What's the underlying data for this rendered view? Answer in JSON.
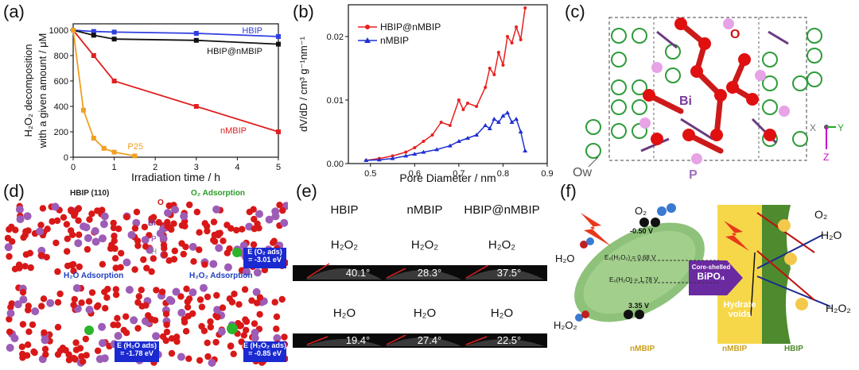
{
  "panels": {
    "a": {
      "label": "(a)"
    },
    "b": {
      "label": "(b)"
    },
    "c": {
      "label": "(c)",
      "atom_o": "O",
      "atom_bi": "Bi",
      "atom_p": "P",
      "atom_ow": "Ow",
      "axis_x": "X",
      "axis_y": "Y",
      "axis_z": "Z"
    },
    "d": {
      "label": "(d)",
      "sub1": "HBIP (110)",
      "sub2": "O₂ Adsorption",
      "sub3": "H₂O Adsorption",
      "sub4": "H₂O₂ Adsorption",
      "lab_o": "O",
      "lab_bi": "Bi",
      "lab_p": "P",
      "lab_h": "H",
      "e1_name": "E (O₂ ads)",
      "e1_val": "= -3.01 eV",
      "e2_name": "E (H₂O ads)",
      "e2_val": "= -1.78 eV",
      "e3_name": "E (H₂O₂ ads)",
      "e3_val": "= -0.85 eV"
    },
    "e": {
      "label": "(e)",
      "col1": "HBIP",
      "col2": "nMBIP",
      "col3": "HBIP@nMBIP",
      "row1": "H₂O₂",
      "row2": "H₂O",
      "angles_h2o2": [
        "40.1°",
        "28.3°",
        "37.5°"
      ],
      "angles_h2o": [
        "19.4°",
        "27.4°",
        "22.5°"
      ]
    },
    "f": {
      "label": "(f)",
      "o2": "O₂",
      "h2o_left": "H₂O",
      "h2o2_left": "H₂O₂",
      "v1": "-0.50 V",
      "v2": "E₀(H₂O₂) = 0.68 V",
      "v3": "E₀(H₂O) = 1.78 V",
      "v4": "3.35 V",
      "core": "Core-shelled",
      "bipo": "BiPO₄",
      "hydrate1": "Hydrate",
      "hydrate2": "voids",
      "o2_right": "O₂",
      "h2o_right": "H₂O",
      "h2o2_right": "H₂O₂",
      "bottom1": "nMBIP",
      "bottom2": "nMBIP",
      "bottom3": "HBIP"
    }
  },
  "chart_data": [
    {
      "type": "line",
      "ylabel_line1": "H₂O₂ decomposition",
      "ylabel_line2": "with a given amount / μM",
      "xlabel": "Irradiation time / h",
      "xlim": [
        0,
        5
      ],
      "ylim": [
        0,
        1050
      ],
      "x_ticks": [
        "0",
        "1",
        "2",
        "3",
        "4",
        "5"
      ],
      "y_ticks": [
        "0",
        "200",
        "400",
        "600",
        "800",
        "1000"
      ],
      "series": [
        {
          "name": "HBIP",
          "color": "#2f3fe0",
          "x": [
            0,
            0.5,
            1,
            3,
            5
          ],
          "y": [
            1000,
            990,
            985,
            975,
            950
          ]
        },
        {
          "name": "HBIP@nMBIP",
          "color": "#111111",
          "x": [
            0,
            0.5,
            1,
            3,
            5
          ],
          "y": [
            1000,
            960,
            930,
            920,
            890
          ]
        },
        {
          "name": "nMBIP",
          "color": "#e02020",
          "x": [
            0,
            0.5,
            1,
            3,
            5
          ],
          "y": [
            1000,
            800,
            600,
            400,
            200
          ]
        },
        {
          "name": "P25",
          "color": "#f0a020",
          "x": [
            0,
            0.25,
            0.5,
            0.75,
            1,
            1.5
          ],
          "y": [
            1000,
            370,
            150,
            70,
            40,
            10
          ]
        }
      ]
    },
    {
      "type": "line",
      "ylabel": "dV/dD / cm³ g⁻¹nm⁻¹",
      "xlabel": "Pore Diameter / nm",
      "xlim": [
        0.45,
        0.9
      ],
      "ylim": [
        0,
        0.025
      ],
      "x_ticks": [
        "0.5",
        "0.6",
        "0.7",
        "0.8",
        "0.9"
      ],
      "y_ticks": [
        "0.00",
        "0.01",
        "0.02"
      ],
      "series": [
        {
          "name": "HBIP@nMBIP",
          "color": "#e82020",
          "x": [
            0.49,
            0.52,
            0.55,
            0.58,
            0.6,
            0.62,
            0.64,
            0.66,
            0.68,
            0.7,
            0.71,
            0.72,
            0.74,
            0.76,
            0.77,
            0.78,
            0.79,
            0.8,
            0.81,
            0.82,
            0.83,
            0.84,
            0.85
          ],
          "y": [
            0.0005,
            0.0008,
            0.0012,
            0.0018,
            0.0025,
            0.0035,
            0.0045,
            0.0065,
            0.006,
            0.01,
            0.0085,
            0.0095,
            0.009,
            0.012,
            0.015,
            0.014,
            0.0175,
            0.0155,
            0.02,
            0.019,
            0.0215,
            0.0195,
            0.0245
          ]
        },
        {
          "name": "nMBIP",
          "color": "#2030d0",
          "x": [
            0.49,
            0.52,
            0.55,
            0.58,
            0.6,
            0.62,
            0.65,
            0.68,
            0.7,
            0.72,
            0.74,
            0.76,
            0.77,
            0.78,
            0.79,
            0.8,
            0.81,
            0.82,
            0.83,
            0.84,
            0.85
          ],
          "y": [
            0.0005,
            0.0006,
            0.0008,
            0.0012,
            0.0015,
            0.0018,
            0.0022,
            0.0028,
            0.0035,
            0.004,
            0.0045,
            0.006,
            0.0055,
            0.007,
            0.0065,
            0.0075,
            0.008,
            0.0065,
            0.007,
            0.005,
            0.002
          ]
        }
      ]
    }
  ]
}
